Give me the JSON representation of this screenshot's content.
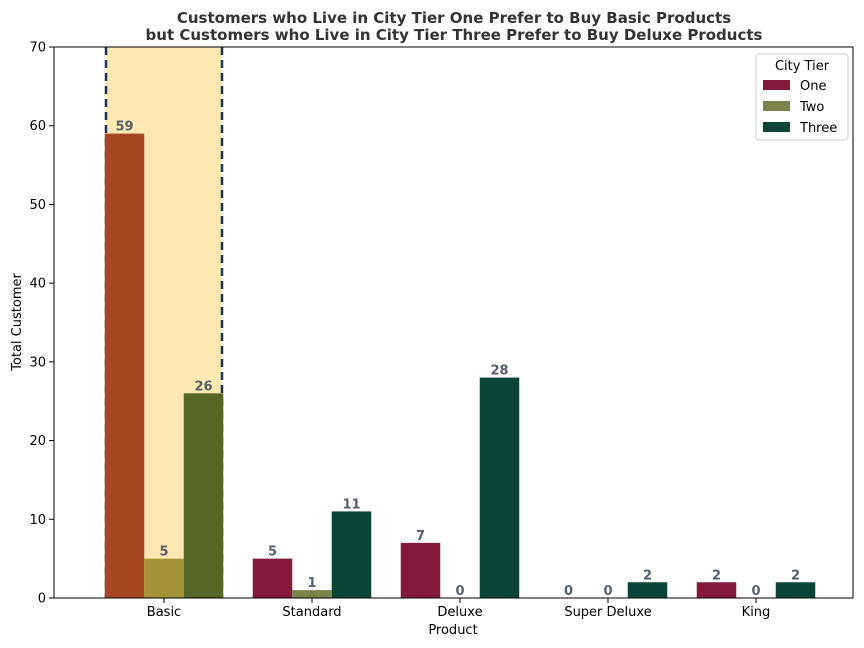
{
  "chart_data": {
    "type": "bar",
    "title": "Customers who Live in City Tier One Prefer to Buy Basic Products\nbut Customers who Live in City Tier Three Prefer to Buy Deluxe Products",
    "title_lines": [
      "Customers who Live in City Tier One Prefer to Buy Basic Products",
      "but Customers who Live in City Tier Three Prefer to Buy Deluxe Products"
    ],
    "xlabel": "Product",
    "ylabel": "Total Customer",
    "ylim": [
      0,
      70
    ],
    "yticks": [
      0,
      10,
      20,
      30,
      40,
      50,
      60,
      70
    ],
    "categories": [
      "Basic",
      "Standard",
      "Deluxe",
      "Super Deluxe",
      "King"
    ],
    "series": [
      {
        "name": "One",
        "values": [
          59,
          5,
          7,
          0,
          2
        ],
        "color": "#841838"
      },
      {
        "name": "Two",
        "values": [
          5,
          1,
          0,
          0,
          0
        ],
        "color": "#7b834a"
      },
      {
        "name": "Three",
        "values": [
          26,
          11,
          28,
          2,
          2
        ],
        "color": "#0b4538"
      }
    ],
    "highlight": {
      "category": "Basic",
      "background": "#fde8b2",
      "border_color": "#1a3358",
      "border_style": "dashed",
      "bar_colors": [
        "#a54723",
        "#a59337",
        "#576726"
      ]
    },
    "legend": {
      "title": "City Tier",
      "placement": "top-right"
    },
    "grid": false
  }
}
